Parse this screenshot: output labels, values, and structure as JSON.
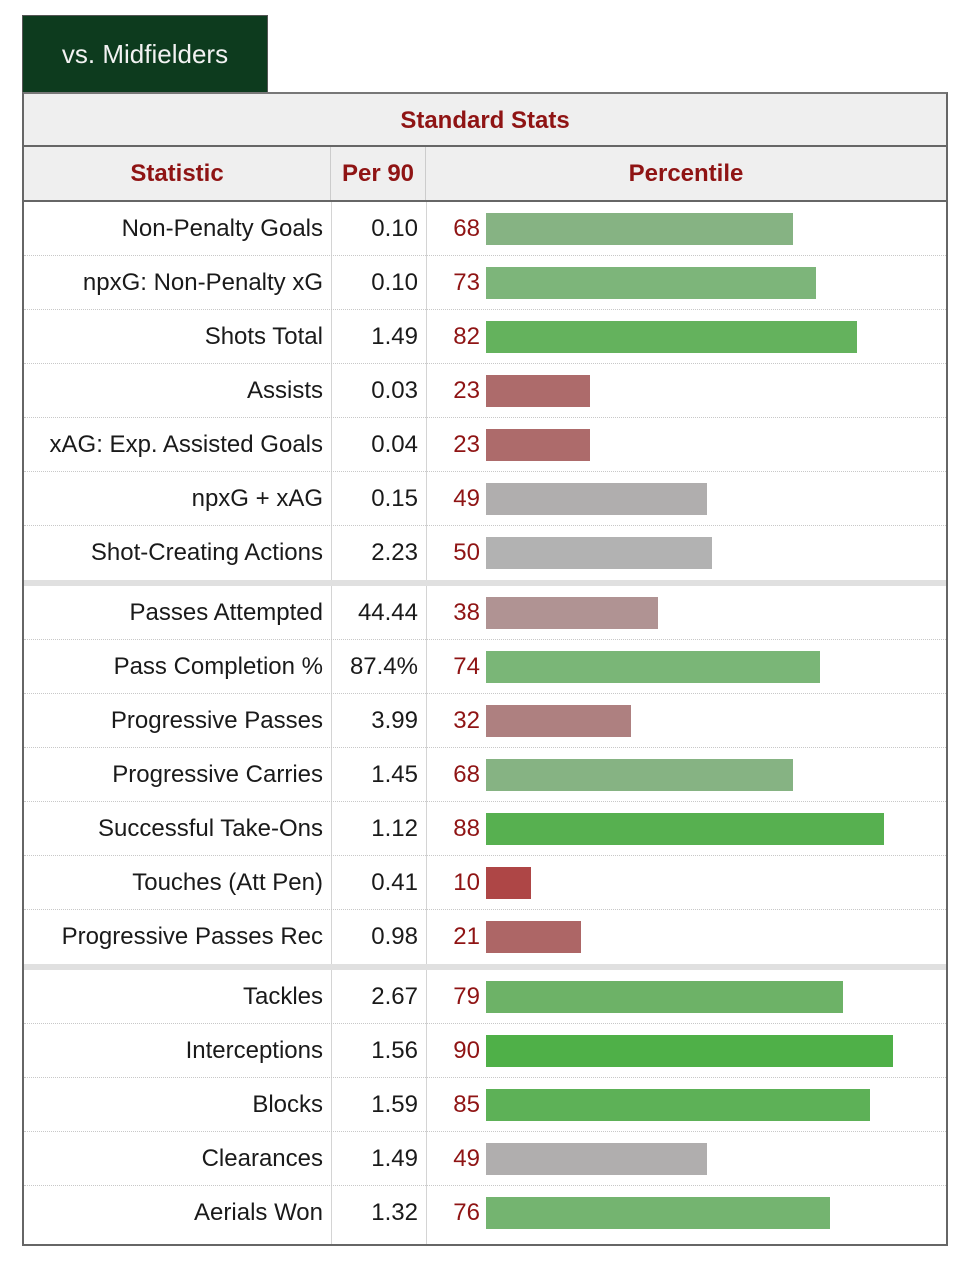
{
  "tab": {
    "label": "vs. Midfielders"
  },
  "table": {
    "title": "Standard Stats",
    "columns": {
      "statistic": "Statistic",
      "per90": "Per 90",
      "percentile": "Percentile"
    }
  },
  "chart_data": {
    "type": "bar",
    "title": "Standard Stats",
    "xlabel": "Percentile",
    "xlim": [
      0,
      100
    ],
    "groups": [
      [
        {
          "statistic": "Non-Penalty Goals",
          "per90": "0.10",
          "percentile": 68,
          "color": "#86b383"
        },
        {
          "statistic": "npxG: Non-Penalty xG",
          "per90": "0.10",
          "percentile": 73,
          "color": "#7db57a"
        },
        {
          "statistic": "Shots Total",
          "per90": "1.49",
          "percentile": 82,
          "color": "#64b25d"
        },
        {
          "statistic": "Assists",
          "per90": "0.03",
          "percentile": 23,
          "color": "#ad6b6b"
        },
        {
          "statistic": "xAG: Exp. Assisted Goals",
          "per90": "0.04",
          "percentile": 23,
          "color": "#ad6b6b"
        },
        {
          "statistic": "npxG + xAG",
          "per90": "0.15",
          "percentile": 49,
          "color": "#b0aeae"
        },
        {
          "statistic": "Shot-Creating Actions",
          "per90": "2.23",
          "percentile": 50,
          "color": "#b2b2b2"
        }
      ],
      [
        {
          "statistic": "Passes Attempted",
          "per90": "44.44",
          "percentile": 38,
          "color": "#b09393"
        },
        {
          "statistic": "Pass Completion %",
          "per90": "87.4%",
          "percentile": 74,
          "color": "#7ab677"
        },
        {
          "statistic": "Progressive Passes",
          "per90": "3.99",
          "percentile": 32,
          "color": "#ae8080"
        },
        {
          "statistic": "Progressive Carries",
          "per90": "1.45",
          "percentile": 68,
          "color": "#86b383"
        },
        {
          "statistic": "Successful Take-Ons",
          "per90": "1.12",
          "percentile": 88,
          "color": "#57b050"
        },
        {
          "statistic": "Touches (Att Pen)",
          "per90": "0.41",
          "percentile": 10,
          "color": "#ae4646"
        },
        {
          "statistic": "Progressive Passes Rec",
          "per90": "0.98",
          "percentile": 21,
          "color": "#ad6666"
        }
      ],
      [
        {
          "statistic": "Tackles",
          "per90": "2.67",
          "percentile": 79,
          "color": "#6db267"
        },
        {
          "statistic": "Interceptions",
          "per90": "1.56",
          "percentile": 90,
          "color": "#4fb048"
        },
        {
          "statistic": "Blocks",
          "per90": "1.59",
          "percentile": 85,
          "color": "#5db157"
        },
        {
          "statistic": "Clearances",
          "per90": "1.49",
          "percentile": 49,
          "color": "#b0aeae"
        },
        {
          "statistic": "Aerials Won",
          "per90": "1.32",
          "percentile": 76,
          "color": "#74b470"
        }
      ]
    ]
  }
}
